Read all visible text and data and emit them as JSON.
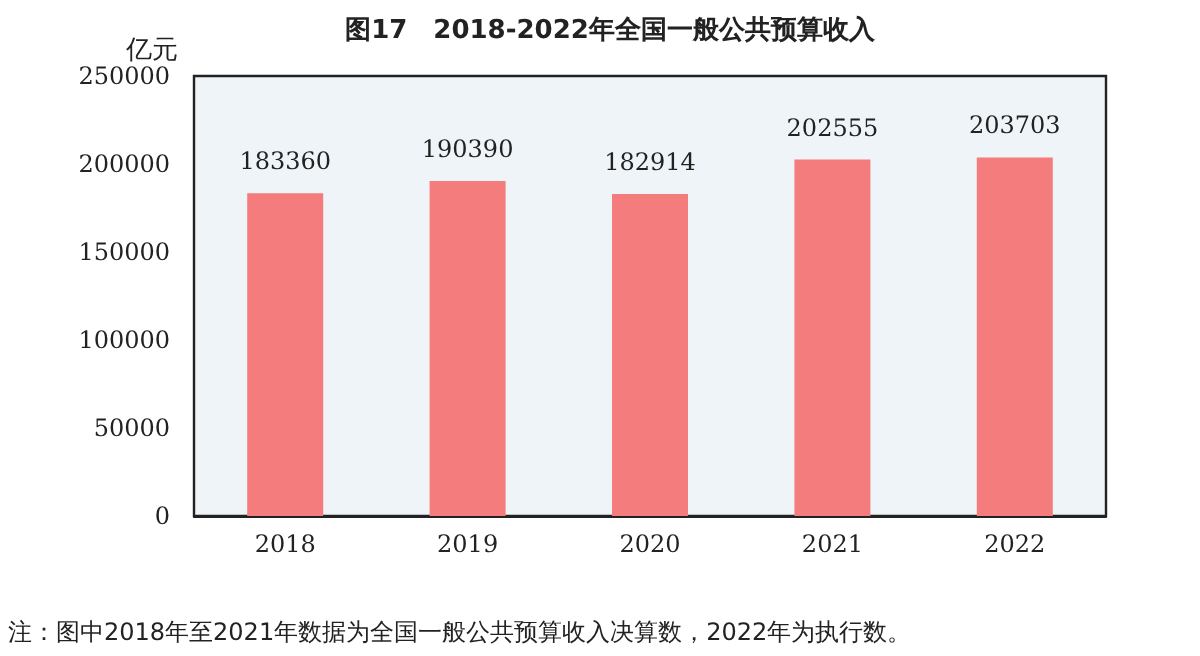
{
  "chart_data": {
    "type": "bar",
    "title": "图17　2018-2022年全国一般公共预算收入",
    "ylabel": "亿元",
    "categories": [
      "2018",
      "2019",
      "2020",
      "2021",
      "2022"
    ],
    "values": [
      183360,
      190390,
      182914,
      202555,
      203703
    ],
    "color": "#f47c7c",
    "ylim": [
      0,
      250000
    ],
    "yticks": [
      0,
      50000,
      100000,
      150000,
      200000,
      250000
    ],
    "grid": false,
    "data_labels": true,
    "annotations": [
      "注：图中2018年至2021年数据为全国一般公共预算收入决算数，2022年为执行数。"
    ]
  }
}
